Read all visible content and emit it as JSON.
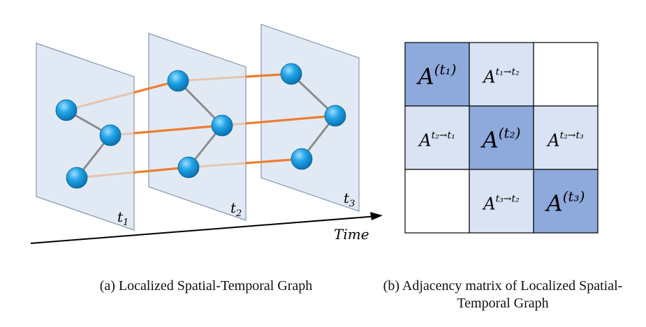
{
  "graph": {
    "frame_labels": [
      {
        "base": "t",
        "sub": "1"
      },
      {
        "base": "t",
        "sub": "2"
      },
      {
        "base": "t",
        "sub": "3"
      }
    ],
    "time_axis_label": "Time",
    "colors": {
      "plane_fill": "#dce6f2",
      "plane_stroke": "#8497b0",
      "node": "#1fa3e6",
      "spatial_edge": "#8c8c8c",
      "temporal_edge": "#ed7d31"
    }
  },
  "matrix": {
    "cells": [
      [
        {
          "base": "A",
          "sup": "(t₁)",
          "style": "diag"
        },
        {
          "base": "A",
          "sup": "t₁→t₂",
          "style": "off"
        },
        {
          "base": "",
          "sup": "",
          "style": "empty"
        }
      ],
      [
        {
          "base": "A",
          "sup": "t₂→t₁",
          "style": "off"
        },
        {
          "base": "A",
          "sup": "(t₂)",
          "style": "diag"
        },
        {
          "base": "A",
          "sup": "t₂→t₃",
          "style": "off"
        }
      ],
      [
        {
          "base": "",
          "sup": "",
          "style": "empty"
        },
        {
          "base": "A",
          "sup": "t₃→t₂",
          "style": "off"
        },
        {
          "base": "A",
          "sup": "(t₃)",
          "style": "diag"
        }
      ]
    ],
    "colors": {
      "diag": "#8ea9db",
      "off": "#dae3f3",
      "empty": "#ffffff",
      "border": "#000000"
    }
  },
  "captions": {
    "a": "(a) Localized Spatial-Temporal Graph",
    "b": "(b) Adjacency matrix of Localized Spatial-Temporal Graph"
  }
}
